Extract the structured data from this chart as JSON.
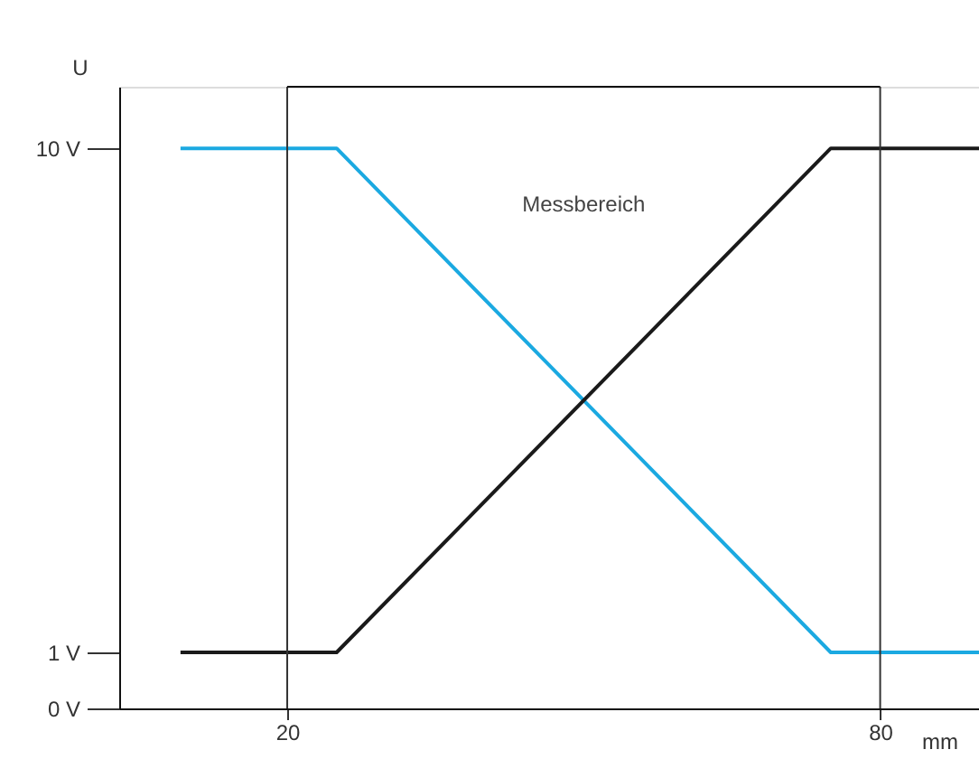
{
  "chart_data": {
    "type": "line",
    "xlabel": "mm",
    "ylabel": "U",
    "xlim": [
      3,
      90
    ],
    "xticks": [
      20,
      80
    ],
    "ylim": [
      0,
      11.1
    ],
    "yticks": [
      {
        "value": 0,
        "label": "0 V"
      },
      {
        "value": 1,
        "label": "1 V"
      },
      {
        "value": 10,
        "label": "10 V"
      }
    ],
    "series": [
      {
        "color": "#1ba9e1",
        "x": [
          9.2,
          25,
          75,
          90
        ],
        "values": [
          10,
          10,
          1,
          1
        ]
      },
      {
        "color": "#1a1a1a",
        "x": [
          9.2,
          25,
          75,
          90
        ],
        "values": [
          1,
          1,
          10,
          10
        ]
      }
    ],
    "ref_lines": [
      {
        "axis": "x",
        "value": 20,
        "color": "#333333"
      },
      {
        "axis": "x",
        "value": 80,
        "color": "#333333"
      }
    ],
    "annotations": [
      "Messbereich"
    ],
    "grid": false,
    "line_style": "solid",
    "marker": "none"
  }
}
